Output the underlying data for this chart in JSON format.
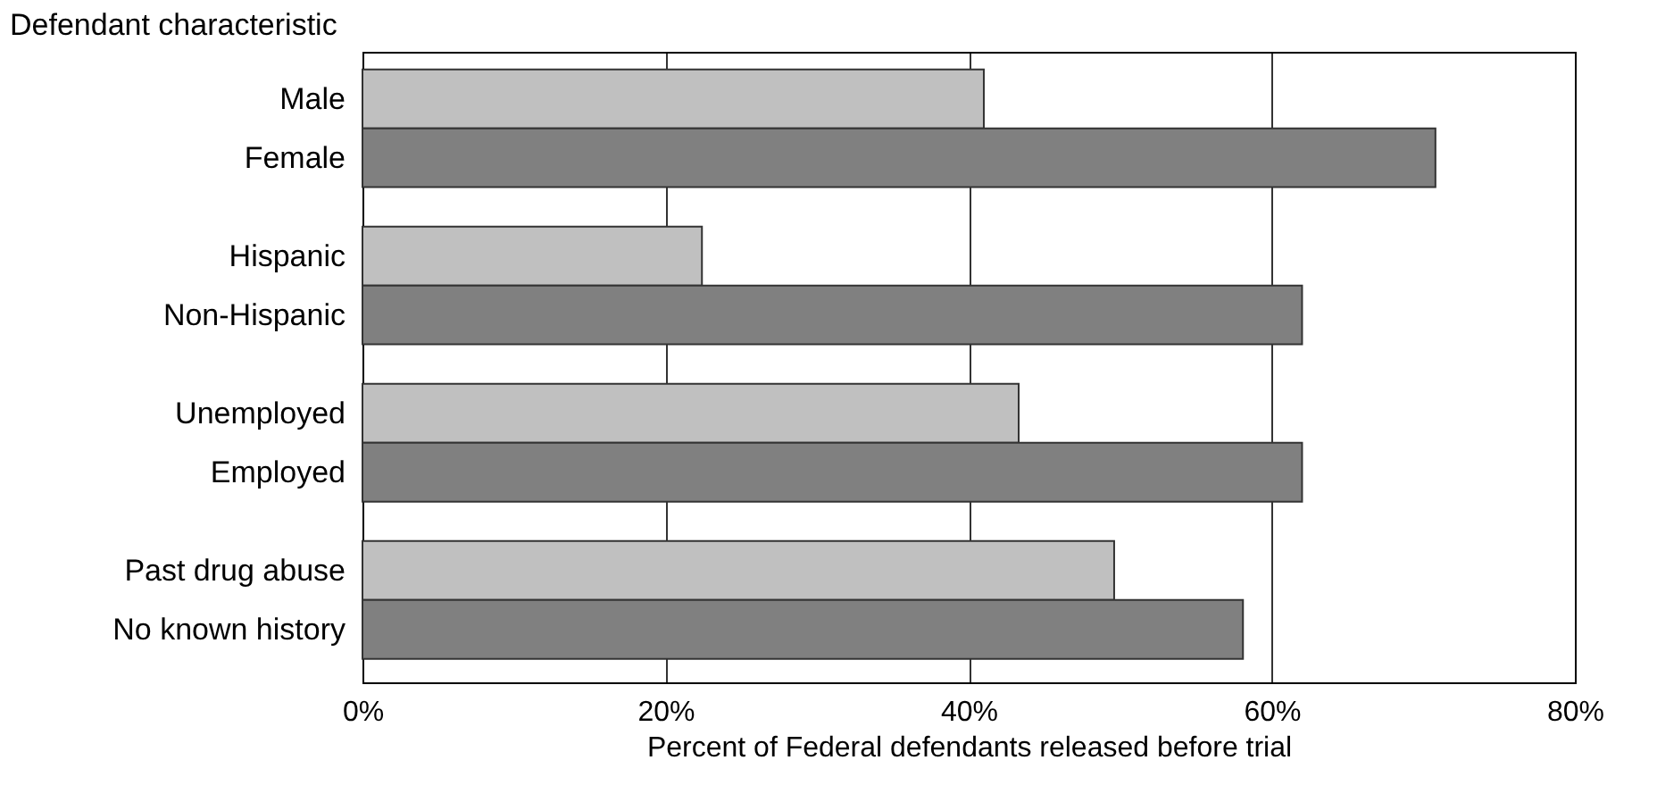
{
  "chart_data": {
    "type": "bar",
    "orientation": "horizontal",
    "categories": [
      "Male",
      "Female",
      "Hispanic",
      "Non-Hispanic",
      "Unemployed",
      "Employed",
      "Past drug abuse",
      "No known history"
    ],
    "values": [
      41.0,
      70.8,
      22.4,
      62.0,
      43.3,
      62.0,
      49.6,
      58.1
    ],
    "colors": [
      "#c0c0c0",
      "#808080",
      "#c0c0c0",
      "#808080",
      "#c0c0c0",
      "#808080",
      "#c0c0c0",
      "#808080"
    ],
    "xlabel": "Percent of Federal defendants released before trial",
    "ylabel": "Defendant characteristic",
    "xlim": [
      0,
      80
    ],
    "xticks": [
      {
        "value": 0,
        "label": "0%"
      },
      {
        "value": 20,
        "label": "20%"
      },
      {
        "value": 40,
        "label": "40%"
      },
      {
        "value": 60,
        "label": "60%"
      },
      {
        "value": 80,
        "label": "80%"
      }
    ],
    "grid": "x"
  }
}
